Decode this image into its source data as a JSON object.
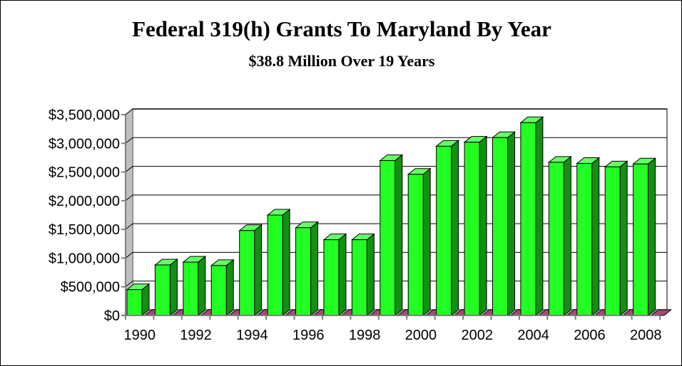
{
  "chart_data": {
    "type": "bar",
    "title": "Federal 319(h) Grants To Maryland By Year",
    "subtitle": "$38.8 Million Over 19 Years",
    "xlabel": "",
    "ylabel": "",
    "categories": [
      "1990",
      "1991",
      "1992",
      "1993",
      "1994",
      "1995",
      "1996",
      "1997",
      "1998",
      "1999",
      "2000",
      "2001",
      "2002",
      "2003",
      "2004",
      "2005",
      "2006",
      "2007",
      "2008"
    ],
    "x_tick_labels": [
      "1990",
      "1992",
      "1994",
      "1996",
      "1998",
      "2000",
      "2002",
      "2004",
      "2006",
      "2008"
    ],
    "y_tick_labels": [
      "$0",
      "$500,000",
      "$1,000,000",
      "$1,500,000",
      "$2,000,000",
      "$2,500,000",
      "$3,000,000",
      "$3,500,000"
    ],
    "series": [
      {
        "values": [
          450000,
          880000,
          930000,
          870000,
          1480000,
          1750000,
          1530000,
          1320000,
          1320000,
          2700000,
          2460000,
          2950000,
          3020000,
          3100000,
          3360000,
          2670000,
          2650000,
          2590000,
          2640000
        ]
      },
      {
        "values": [
          0,
          0,
          0,
          0,
          0,
          0,
          0,
          0,
          0,
          0,
          0,
          0,
          0,
          0,
          0,
          0,
          0,
          0,
          0
        ]
      }
    ],
    "ylim": [
      0,
      3500000
    ],
    "y_step": 500000,
    "grid": true,
    "legend": "none",
    "colors": {
      "bar": "#22ff22",
      "bar_side": "#119011",
      "bar_top": "#66ff66",
      "series2": "#7a2e4f",
      "axis": "#808080",
      "grid": "#000000"
    }
  }
}
